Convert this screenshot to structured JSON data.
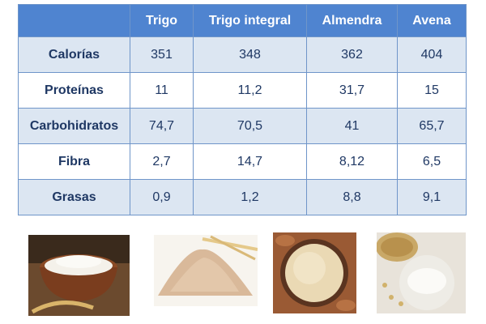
{
  "table": {
    "columns": [
      "Trigo",
      "Trigo integral",
      "Almendra",
      "Avena"
    ],
    "rows": [
      {
        "label": "Calorías",
        "values": [
          "351",
          "348",
          "362",
          "404"
        ]
      },
      {
        "label": "Proteínas",
        "values": [
          "11",
          "11,2",
          "31,7",
          "15"
        ]
      },
      {
        "label": "Carbohidratos",
        "values": [
          "74,7",
          "70,5",
          "41",
          "65,7"
        ]
      },
      {
        "label": "Fibra",
        "values": [
          "2,7",
          "14,7",
          "8,12",
          "6,5"
        ]
      },
      {
        "label": "Grasas",
        "values": [
          "0,9",
          "1,2",
          "8,8",
          "9,1"
        ]
      }
    ]
  }
}
